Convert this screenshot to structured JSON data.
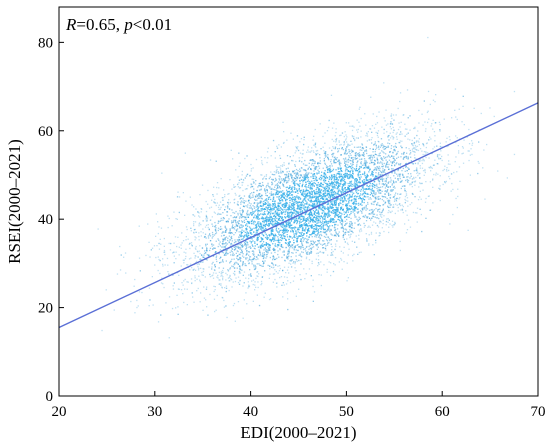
{
  "chart_data": {
    "type": "scatter",
    "xlabel": "EDI(2000–2021)",
    "ylabel": "RSEI(2000–2021)",
    "xlim": [
      20,
      70
    ],
    "ylim": [
      0,
      88
    ],
    "xticks": [
      "20",
      "30",
      "40",
      "50",
      "60",
      "70"
    ],
    "yticks": [
      "0",
      "20",
      "40",
      "60",
      "80"
    ],
    "annotation": {
      "r_symbol": "R",
      "r_value": "=0.65, ",
      "p_symbol": "p",
      "p_value": "<0.01"
    },
    "point_cloud": {
      "center": [
        46,
        43
      ],
      "std": [
        6.5,
        8.5
      ],
      "correlation": 0.65,
      "approx_x_range": [
        21,
        69
      ],
      "approx_y_range": [
        7,
        82
      ]
    },
    "regression_line": {
      "x": [
        20,
        70
      ],
      "y": [
        15.5,
        66.3
      ]
    },
    "grid": false,
    "legend": "none",
    "colors": {
      "points": "#4aa8dd",
      "points_core": "#3ab0e8",
      "fit_line": "#5a6fd6",
      "axes": "#000000"
    }
  }
}
